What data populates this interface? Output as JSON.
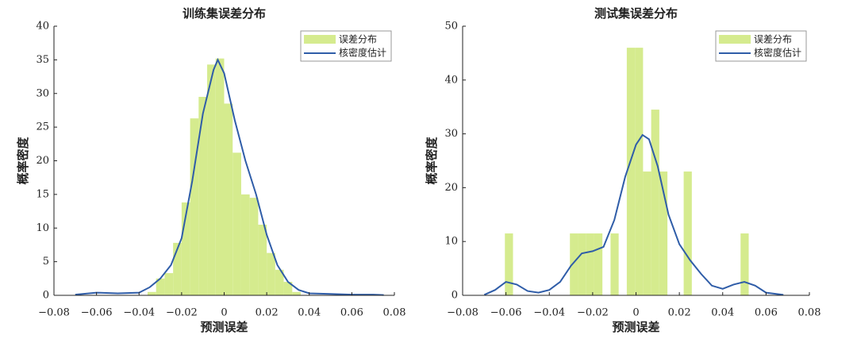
{
  "chart_data": [
    {
      "type": "histogram",
      "title": "训练集误差分布",
      "xlabel": "预测误差",
      "ylabel": "概率密度",
      "xlim": [
        -0.08,
        0.08
      ],
      "xticks": [
        {
          "value": -0.08,
          "label": "−0.08"
        },
        {
          "value": -0.06,
          "label": "−0.06"
        },
        {
          "value": -0.04,
          "label": "−0.04"
        },
        {
          "value": -0.02,
          "label": "−0.02"
        },
        0,
        0.02,
        0.04,
        0.06,
        0.08
      ],
      "ylim": [
        0,
        40
      ],
      "yticks": [
        0,
        5,
        10,
        15,
        20,
        25,
        30,
        35,
        40
      ],
      "legend": "upper-right",
      "bins": [
        -0.036,
        -0.032,
        -0.028,
        -0.024,
        -0.02,
        -0.016,
        -0.012,
        -0.008,
        -0.004,
        0,
        0.004,
        0.008,
        0.012,
        0.016,
        0.02,
        0.024,
        0.028,
        0.032,
        0.036
      ],
      "series": [
        {
          "name": "误差分布",
          "color": "#d5eb8e",
          "values": [
            0.5,
            2.5,
            3.3,
            7.8,
            13.8,
            26.3,
            29.5,
            34.3,
            35.2,
            28.5,
            21.2,
            15,
            14.5,
            10.5,
            6.3,
            3.8,
            2,
            0.5
          ]
        },
        {
          "name": "核密度估计",
          "color": "#2f5da8",
          "x": [
            -0.07,
            -0.06,
            -0.05,
            -0.04,
            -0.035,
            -0.03,
            -0.025,
            -0.02,
            -0.015,
            -0.01,
            -0.005,
            -0.003,
            0,
            0.005,
            0.01,
            0.015,
            0.02,
            0.025,
            0.03,
            0.035,
            0.04,
            0.05,
            0.06,
            0.07,
            0.075
          ],
          "values": [
            0.1,
            0.4,
            0.3,
            0.4,
            1.2,
            2.5,
            4.5,
            8.5,
            17,
            27,
            33.5,
            35,
            33,
            26,
            20,
            15,
            9,
            4.5,
            2,
            0.8,
            0.3,
            0.2,
            0.1,
            0.1,
            0.05
          ]
        }
      ]
    },
    {
      "type": "histogram",
      "title": "测试集误差分布",
      "xlabel": "预测误差",
      "ylabel": "概率密度",
      "xlim": [
        -0.08,
        0.08
      ],
      "xticks": [
        {
          "value": -0.08,
          "label": "−0.08"
        },
        {
          "value": -0.06,
          "label": "−0.06"
        },
        {
          "value": -0.04,
          "label": "−0.04"
        },
        {
          "value": -0.02,
          "label": "−0.02"
        },
        0,
        0.02,
        0.04,
        0.06,
        0.08
      ],
      "ylim": [
        0,
        50
      ],
      "yticks": [
        0,
        10,
        20,
        30,
        40,
        50
      ],
      "legend": "upper-right",
      "bins": [
        -0.0605,
        -0.05675,
        -0.053,
        -0.04925,
        -0.0455,
        -0.04175,
        -0.038,
        -0.03425,
        -0.0305,
        -0.02675,
        -0.023,
        -0.01925,
        -0.0155,
        -0.01175,
        -0.008,
        -0.00425,
        -0.0005,
        0.00325,
        0.007,
        0.01075,
        0.0145,
        0.01825,
        0.022,
        0.02575,
        0.0295,
        0.03325,
        0.037,
        0.04075,
        0.0445,
        0.04825,
        0.052
      ],
      "series": [
        {
          "name": "误差分布",
          "color": "#d5eb8e",
          "values": [
            11.5,
            0,
            0,
            0,
            0,
            0,
            0,
            0,
            11.5,
            11.5,
            11.5,
            11.5,
            0,
            11.5,
            0,
            46,
            46,
            23,
            34.5,
            23,
            0,
            0,
            23,
            0,
            0,
            0,
            0,
            0,
            0,
            11.5
          ]
        },
        {
          "name": "核密度估计",
          "color": "#2f5da8",
          "x": [
            -0.07,
            -0.065,
            -0.06,
            -0.055,
            -0.05,
            -0.045,
            -0.04,
            -0.035,
            -0.03,
            -0.025,
            -0.02,
            -0.015,
            -0.01,
            -0.005,
            0,
            0.003,
            0.006,
            0.01,
            0.015,
            0.02,
            0.025,
            0.03,
            0.035,
            0.04,
            0.045,
            0.05,
            0.055,
            0.06,
            0.068
          ],
          "values": [
            0.1,
            1,
            2.5,
            2,
            0.8,
            0.5,
            1,
            2.5,
            5.5,
            7.8,
            8.2,
            9,
            14,
            22,
            28,
            29.8,
            29,
            24,
            15,
            9.5,
            6.5,
            4,
            1.8,
            1.2,
            2,
            2.5,
            1.8,
            0.5,
            0.1
          ]
        }
      ]
    }
  ]
}
